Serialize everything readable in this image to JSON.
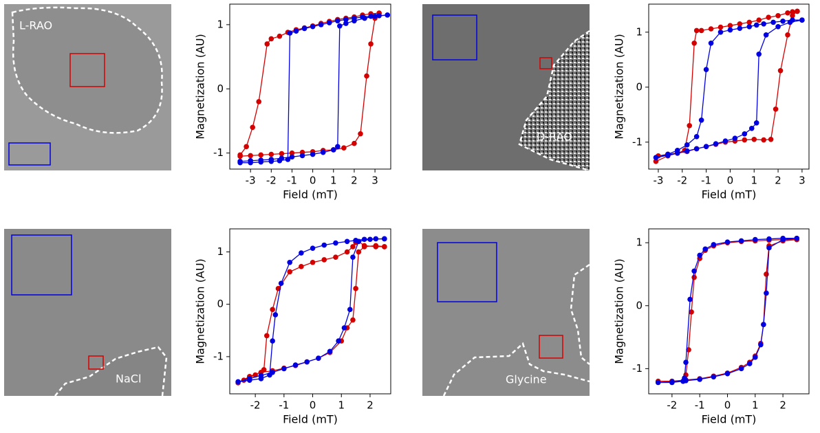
{
  "images": [
    {
      "label": "L-RAO"
    },
    {
      "label": "D-RAO"
    },
    {
      "label": "NaCl"
    },
    {
      "label": "Glycine"
    }
  ],
  "chart_data": [
    {
      "type": "line",
      "xlabel": "Field (mT)",
      "ylabel": "Magnetization (AU)",
      "xlim": [
        -4.0,
        3.76
      ],
      "ylim": [
        -1.25,
        1.32
      ],
      "xticks": [
        -3,
        -2,
        -1,
        0,
        1,
        2,
        3
      ],
      "yticks": [
        -1,
        0,
        1
      ],
      "series": [
        {
          "color": "#d40000",
          "x": [
            3.2,
            2.8,
            2.4,
            2,
            1.6,
            1.2,
            0.8,
            0.4,
            0,
            -0.4,
            -0.8,
            -1.2,
            -1.6,
            -2,
            -2.2,
            -2.6,
            -2.9,
            -3.2,
            -3.5,
            -3.5,
            -3,
            -2.5,
            -2,
            -1.5,
            -1,
            -0.5,
            0,
            0.5,
            1,
            1.5,
            2,
            2.3,
            2.6,
            2.8,
            3.0,
            3.2
          ],
          "values": [
            1.18,
            1.17,
            1.15,
            1.12,
            1.1,
            1.08,
            1.05,
            1.02,
            0.98,
            0.95,
            0.92,
            0.88,
            0.82,
            0.78,
            0.7,
            -0.2,
            -0.6,
            -0.9,
            -1.03,
            -1.05,
            -1.04,
            -1.03,
            -1.02,
            -1.01,
            -1.0,
            -0.99,
            -0.98,
            -0.96,
            -0.95,
            -0.92,
            -0.85,
            -0.7,
            0.2,
            0.7,
            1.1,
            1.18
          ]
        },
        {
          "color": "#0000e0",
          "x": [
            3.6,
            3.2,
            2.8,
            2.4,
            2,
            1.6,
            1.2,
            0.8,
            0.4,
            0,
            -0.4,
            -0.8,
            -1.1,
            -1.2,
            -1.6,
            -2,
            -2.5,
            -3,
            -3.5,
            -3.5,
            -3,
            -2.5,
            -2,
            -1.5,
            -1,
            -0.5,
            0,
            0.5,
            1,
            1.2,
            1.3,
            1.6,
            2,
            2.5,
            3,
            3.6
          ],
          "values": [
            1.15,
            1.14,
            1.13,
            1.12,
            1.1,
            1.08,
            1.06,
            1.03,
            1.0,
            0.97,
            0.94,
            0.9,
            0.87,
            -1.1,
            -1.12,
            -1.13,
            -1.14,
            -1.15,
            -1.15,
            -1.13,
            -1.12,
            -1.11,
            -1.1,
            -1.08,
            -1.06,
            -1.04,
            -1.02,
            -0.99,
            -0.95,
            -0.9,
            0.98,
            1.02,
            1.06,
            1.1,
            1.13,
            1.15
          ]
        }
      ]
    },
    {
      "type": "line",
      "xlabel": "Field (mT)",
      "ylabel": "Magnetization (AU)",
      "xlim": [
        -3.4,
        3.29
      ],
      "ylim": [
        -1.49,
        1.51
      ],
      "xticks": [
        -3,
        -2,
        -1,
        0,
        1,
        2,
        3
      ],
      "yticks": [
        -1,
        0,
        1
      ],
      "series": [
        {
          "color": "#d40000",
          "x": [
            2.8,
            2.6,
            2.4,
            2,
            1.6,
            1.2,
            0.8,
            0.4,
            0,
            -0.4,
            -0.8,
            -1.2,
            -1.4,
            -1.5,
            -1.7,
            -1.9,
            -2.2,
            -2.6,
            -3,
            -3.1,
            -2.6,
            -2.2,
            -1.8,
            -1.4,
            -1,
            -0.6,
            -0.2,
            0.2,
            0.6,
            1,
            1.4,
            1.7,
            1.9,
            2.1,
            2.4,
            2.6,
            2.8
          ],
          "values": [
            1.38,
            1.37,
            1.35,
            1.3,
            1.27,
            1.22,
            1.18,
            1.15,
            1.12,
            1.09,
            1.06,
            1.03,
            1.03,
            0.8,
            -0.7,
            -1.15,
            -1.2,
            -1.22,
            -1.25,
            -1.35,
            -1.25,
            -1.2,
            -1.17,
            -1.12,
            -1.08,
            -1.04,
            -1.0,
            -0.98,
            -0.96,
            -0.95,
            -0.96,
            -0.95,
            -0.4,
            0.3,
            0.95,
            1.3,
            1.38
          ]
        },
        {
          "color": "#0000e0",
          "x": [
            3,
            2.6,
            2.2,
            1.8,
            1.4,
            1.1,
            0.8,
            0.4,
            0,
            -0.4,
            -0.8,
            -1,
            -1.2,
            -1.4,
            -1.8,
            -2.2,
            -2.6,
            -3.1,
            -2.6,
            -2.2,
            -1.8,
            -1.4,
            -1,
            -0.6,
            -0.2,
            0.2,
            0.6,
            0.9,
            1.1,
            1.2,
            1.5,
            2,
            2.5,
            3
          ],
          "values": [
            1.22,
            1.22,
            1.2,
            1.18,
            1.15,
            1.13,
            1.1,
            1.07,
            1.04,
            1.0,
            0.8,
            0.32,
            -0.6,
            -0.9,
            -1.05,
            -1.15,
            -1.22,
            -1.28,
            -1.24,
            -1.2,
            -1.16,
            -1.12,
            -1.08,
            -1.03,
            -0.98,
            -0.93,
            -0.85,
            -0.75,
            -0.65,
            0.6,
            0.95,
            1.1,
            1.18,
            1.22
          ]
        }
      ]
    },
    {
      "type": "line",
      "xlabel": "Field (mT)",
      "ylabel": "Magnetization (AU)",
      "xlim": [
        -2.89,
        2.72
      ],
      "ylim": [
        -1.71,
        1.44
      ],
      "xticks": [
        -2,
        -1,
        0,
        1,
        2
      ],
      "yticks": [
        -1,
        0,
        1
      ],
      "series": [
        {
          "color": "#d40000",
          "x": [
            2.5,
            2.2,
            1.8,
            1.6,
            1.5,
            1.4,
            1.2,
            0.8,
            0.4,
            0,
            -0.4,
            -0.8,
            -1.2,
            -1.4,
            -1.6,
            -1.7,
            -2,
            -2.4,
            -2.6,
            -2.2,
            -1.8,
            -1.4,
            -1,
            -0.6,
            -0.2,
            0.2,
            0.6,
            1,
            1.2,
            1.4,
            1.5,
            1.6,
            1.8,
            2.2,
            2.5
          ],
          "values": [
            1.1,
            1.1,
            1.12,
            1.2,
            1.18,
            1.1,
            1.0,
            0.9,
            0.85,
            0.8,
            0.72,
            0.62,
            0.3,
            -0.1,
            -0.6,
            -1.25,
            -1.35,
            -1.45,
            -1.5,
            -1.38,
            -1.3,
            -1.27,
            -1.22,
            -1.17,
            -1.1,
            -1.03,
            -0.92,
            -0.7,
            -0.45,
            -0.3,
            0.3,
            1.0,
            1.1,
            1.12,
            1.1
          ]
        },
        {
          "color": "#0000e0",
          "x": [
            2.5,
            2.2,
            1.8,
            1.5,
            1.2,
            0.8,
            0.4,
            0,
            -0.4,
            -0.8,
            -1.1,
            -1.3,
            -1.4,
            -1.5,
            -1.8,
            -2.2,
            -2.6,
            -2.2,
            -1.8,
            -1.4,
            -1,
            -0.6,
            -0.2,
            0.2,
            0.6,
            0.9,
            1.1,
            1.3,
            1.4,
            1.6,
            2,
            2.5
          ],
          "values": [
            1.25,
            1.25,
            1.24,
            1.22,
            1.2,
            1.17,
            1.13,
            1.07,
            0.98,
            0.8,
            0.4,
            -0.2,
            -0.7,
            -1.35,
            -1.42,
            -1.45,
            -1.48,
            -1.42,
            -1.36,
            -1.3,
            -1.23,
            -1.16,
            -1.1,
            -1.03,
            -0.9,
            -0.7,
            -0.45,
            -0.1,
            0.9,
            1.2,
            1.24,
            1.25
          ]
        }
      ]
    },
    {
      "type": "line",
      "xlabel": "Field (mT)",
      "ylabel": "Magnetization (AU)",
      "xlim": [
        -2.84,
        2.94
      ],
      "ylim": [
        -1.4,
        1.22
      ],
      "xticks": [
        -2,
        -1,
        0,
        1,
        2
      ],
      "yticks": [
        -1,
        0,
        1
      ],
      "series": [
        {
          "color": "#d40000",
          "x": [
            2.5,
            2,
            1.5,
            1,
            0.5,
            0,
            -0.5,
            -0.8,
            -1.0,
            -1.2,
            -1.3,
            -1.4,
            -1.5,
            -1.6,
            -2,
            -2.5,
            -2,
            -1.5,
            -1,
            -0.5,
            0,
            0.5,
            0.8,
            1,
            1.2,
            1.3,
            1.4,
            1.5,
            2,
            2.5
          ],
          "values": [
            1.05,
            1.05,
            1.04,
            1.03,
            1.02,
            1.0,
            0.95,
            0.88,
            0.75,
            0.45,
            -0.1,
            -0.7,
            -1.1,
            -1.2,
            -1.2,
            -1.2,
            -1.2,
            -1.18,
            -1.16,
            -1.12,
            -1.07,
            -0.98,
            -0.9,
            -0.8,
            -0.6,
            -0.3,
            0.5,
            0.95,
            1.03,
            1.05
          ]
        },
        {
          "color": "#0000e0",
          "x": [
            2.5,
            2,
            1.5,
            1,
            0.5,
            0,
            -0.5,
            -0.8,
            -1,
            -1.2,
            -1.35,
            -1.5,
            -1.55,
            -1.6,
            -2,
            -2.5,
            -2,
            -1.5,
            -1,
            -0.5,
            0,
            0.5,
            0.8,
            1,
            1.2,
            1.3,
            1.4,
            1.5,
            2,
            2.5
          ],
          "values": [
            1.07,
            1.07,
            1.06,
            1.05,
            1.03,
            1.01,
            0.97,
            0.9,
            0.8,
            0.55,
            0.1,
            -0.9,
            -1.15,
            -1.2,
            -1.22,
            -1.22,
            -1.21,
            -1.19,
            -1.17,
            -1.13,
            -1.08,
            -1.0,
            -0.92,
            -0.82,
            -0.62,
            -0.3,
            0.2,
            0.92,
            1.05,
            1.07
          ]
        }
      ]
    }
  ]
}
